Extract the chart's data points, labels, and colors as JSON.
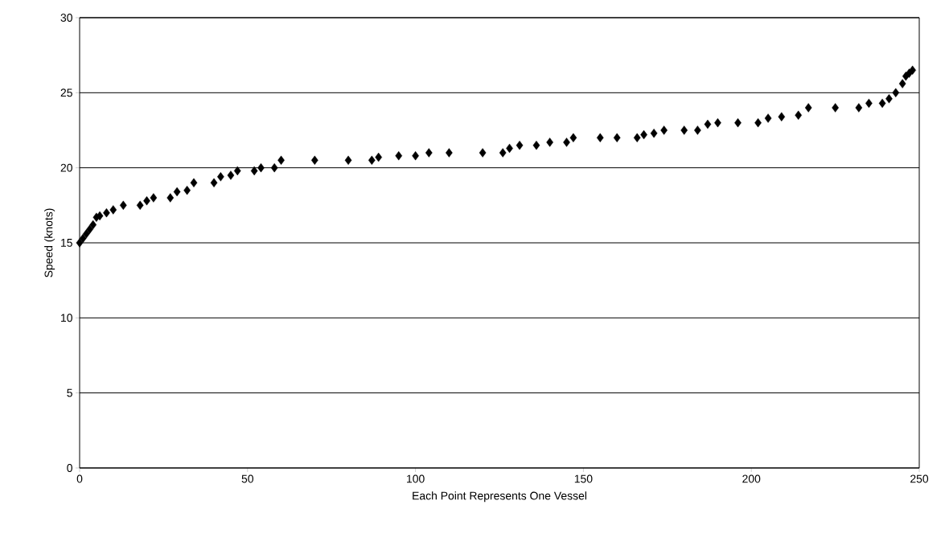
{
  "chart_data": {
    "type": "scatter",
    "xlabel": "Each Point Represents One Vessel",
    "ylabel": "Speed (knots)",
    "x": [
      0,
      1,
      2,
      3,
      4,
      5,
      6,
      8,
      10,
      13,
      18,
      20,
      22,
      27,
      29,
      32,
      34,
      40,
      42,
      45,
      47,
      52,
      54,
      58,
      60,
      70,
      80,
      87,
      89,
      95,
      100,
      104,
      110,
      120,
      126,
      128,
      131,
      136,
      140,
      145,
      147,
      155,
      160,
      166,
      168,
      171,
      174,
      180,
      184,
      187,
      190,
      196,
      202,
      205,
      209,
      214,
      217,
      225,
      232,
      235,
      239,
      241,
      243,
      245,
      246,
      247,
      248
    ],
    "values": [
      15.0,
      15.3,
      15.6,
      15.9,
      16.2,
      16.7,
      16.8,
      17.0,
      17.2,
      17.5,
      17.5,
      17.8,
      18.0,
      18.0,
      18.4,
      18.5,
      19.0,
      19.0,
      19.4,
      19.5,
      19.8,
      19.8,
      20.0,
      20.0,
      20.5,
      20.5,
      20.5,
      20.5,
      20.7,
      20.8,
      20.8,
      21.0,
      21.0,
      21.0,
      21.0,
      21.3,
      21.5,
      21.5,
      21.7,
      21.7,
      22.0,
      22.0,
      22.0,
      22.0,
      22.2,
      22.3,
      22.5,
      22.5,
      22.5,
      22.9,
      23.0,
      23.0,
      23.0,
      23.3,
      23.4,
      23.5,
      24.0,
      24.0,
      24.0,
      24.3,
      24.3,
      24.6,
      25.0,
      25.6,
      26.1,
      26.3,
      26.5
    ],
    "color": "#000000",
    "marker": "diamond",
    "xlim": [
      0,
      250
    ],
    "xticks": [
      0,
      50,
      100,
      150,
      200,
      250
    ],
    "ylim": [
      0,
      30
    ],
    "yticks": [
      0,
      5,
      10,
      15,
      20,
      25,
      30
    ],
    "grid": "y"
  }
}
